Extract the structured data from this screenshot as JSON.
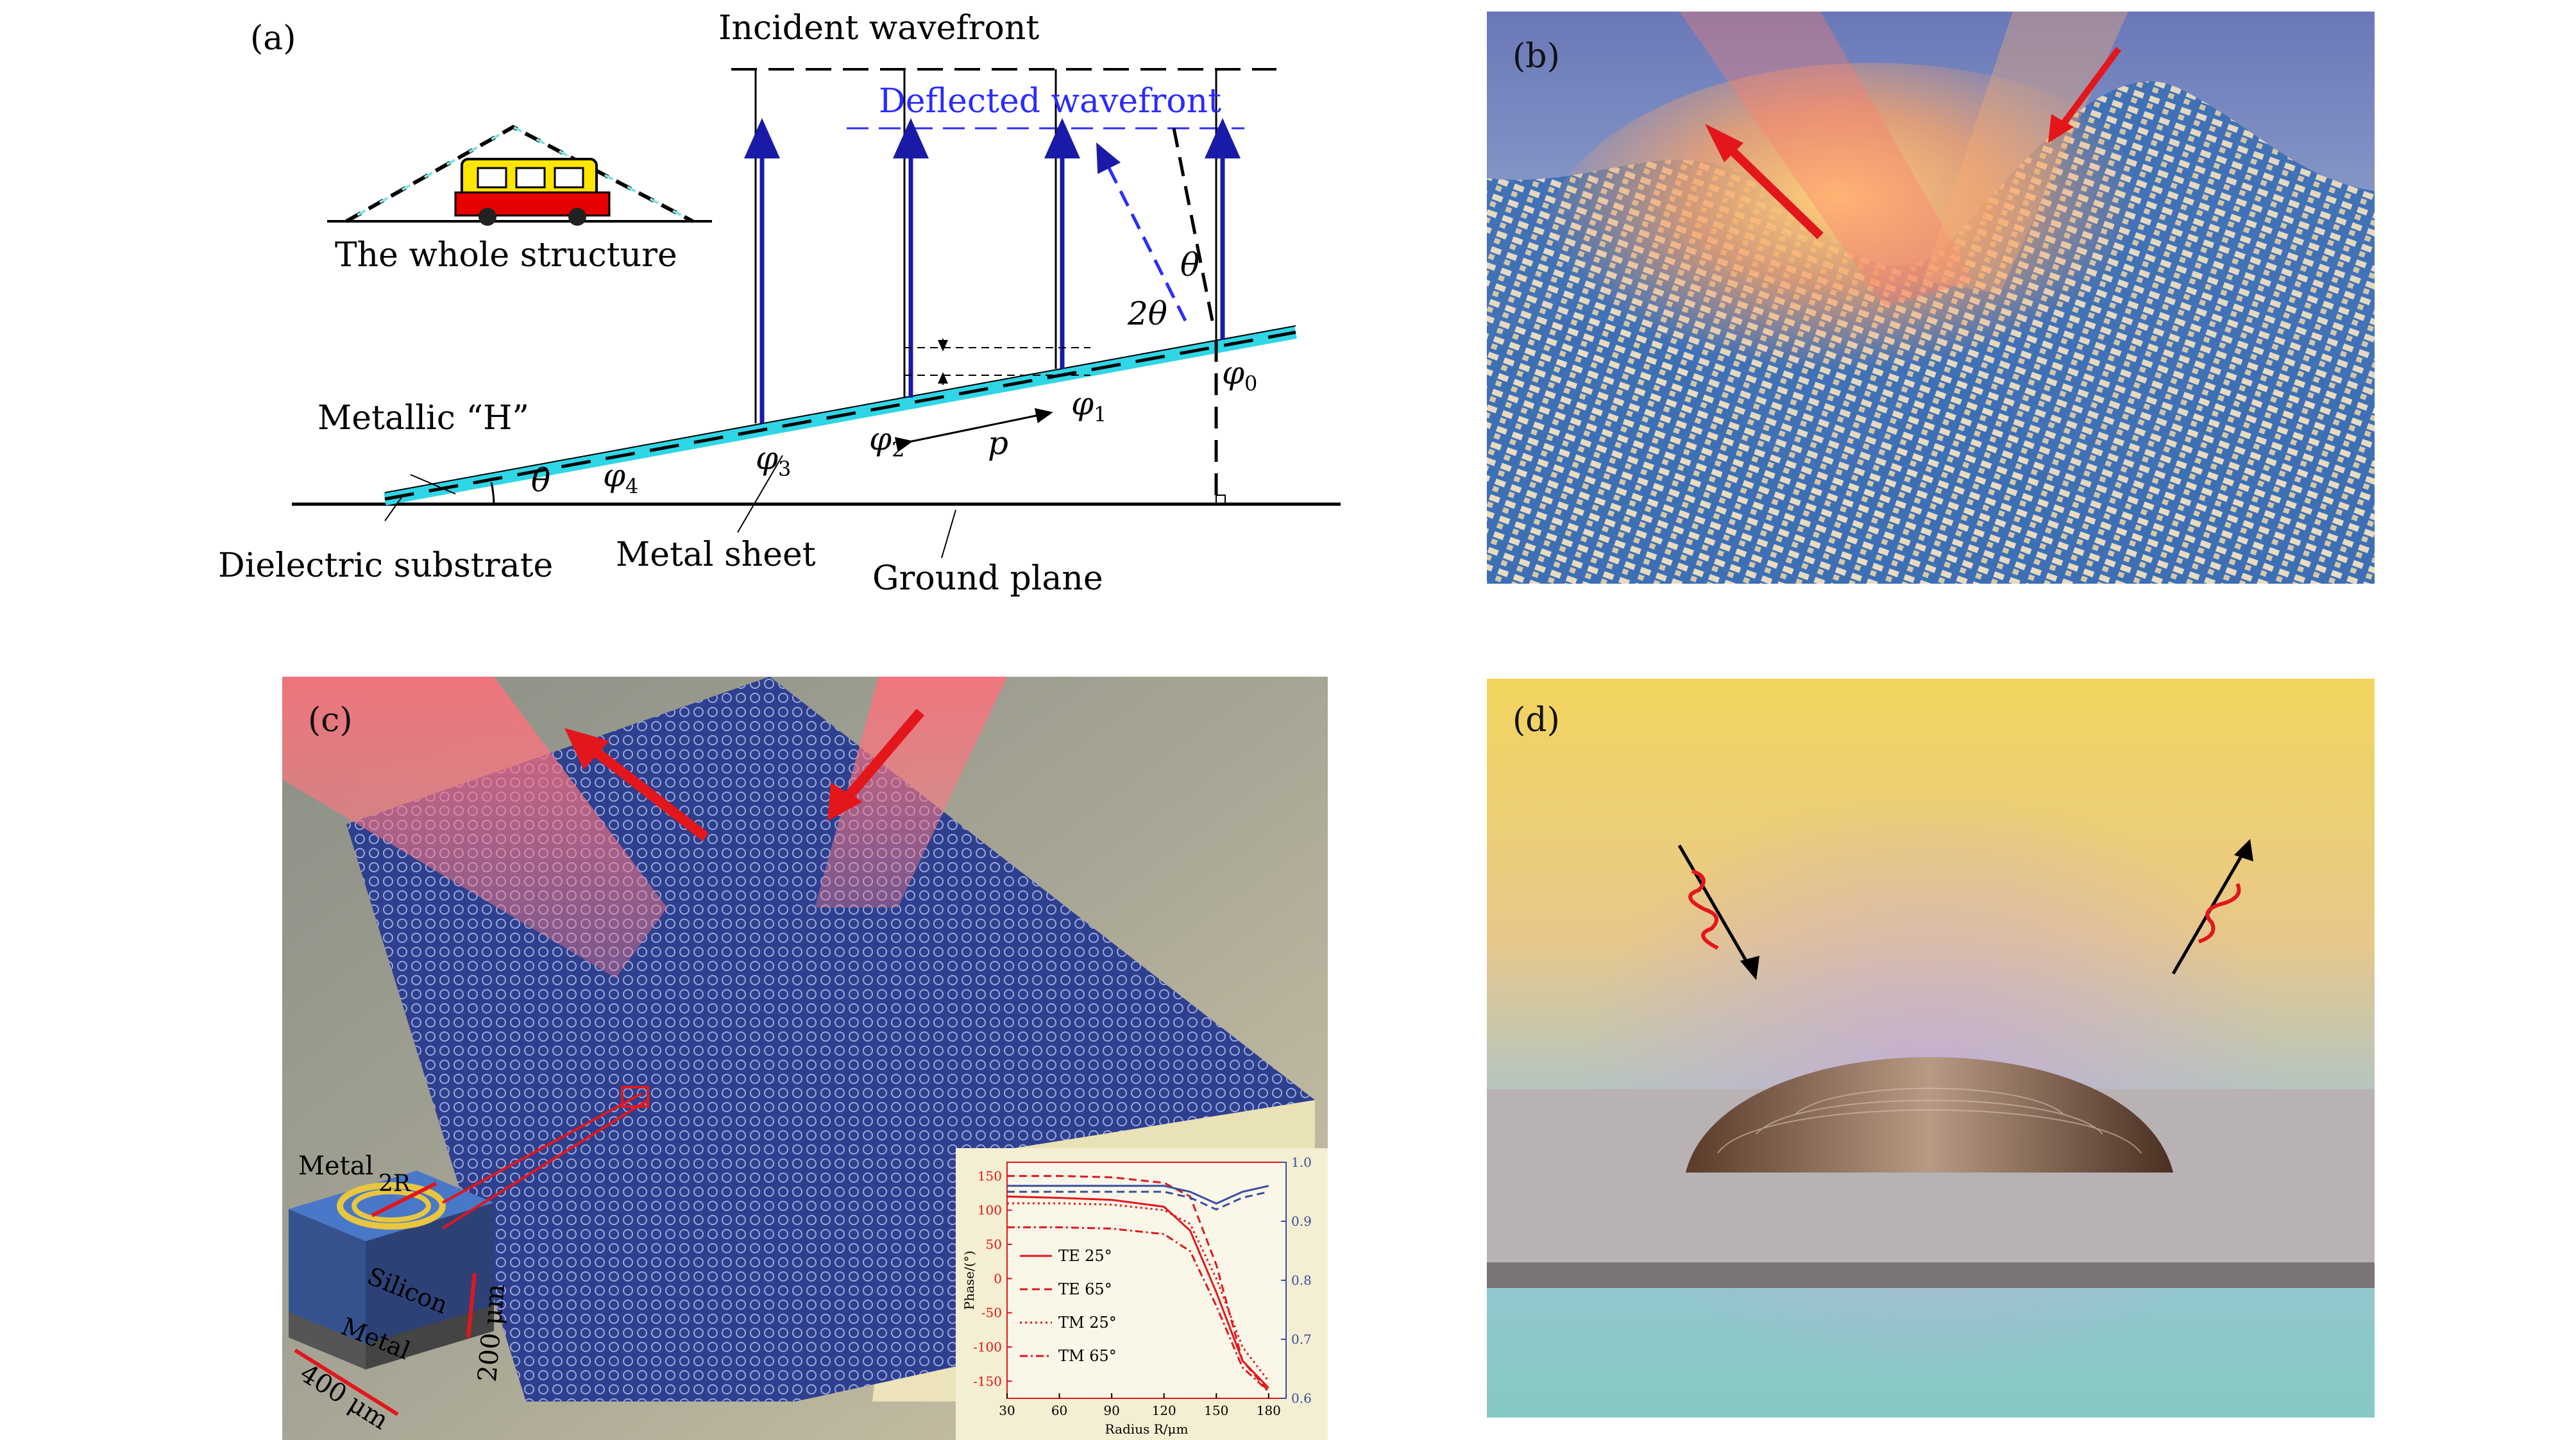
{
  "panels": {
    "a": {
      "label": "(a)",
      "incident_wavefront": "Incident wavefront",
      "deflected_wavefront": "Deflected wavefront",
      "whole_structure": "The whole structure",
      "metallic_h": "Metallic “H”",
      "dielectric_substrate": "Dielectric substrate",
      "metal_sheet": "Metal sheet",
      "ground_plane": "Ground plane",
      "theta": "θ",
      "two_theta": "2θ",
      "p": "p",
      "phi0": "φ",
      "phi0_sub": "0",
      "phi1": "φ",
      "phi1_sub": "1",
      "phi2": "φ",
      "phi2_sub": "2",
      "phi3": "φ",
      "phi3_sub": "3",
      "phi4": "φ",
      "phi4_sub": "4",
      "colors": {
        "incident": "#1a1aa8",
        "deflected": "#2b2bff",
        "sheet": "#2fd6e6"
      }
    },
    "b": {
      "label": "(b)"
    },
    "c": {
      "label": "(c)",
      "metal_top": "Metal",
      "two_r": "2R",
      "silicon": "Silicon",
      "metal_bottom": "Metal",
      "dim_400": "400 μm",
      "dim_200": "200 μm",
      "inset_chart": {
        "ylabel": "Phase/(°)",
        "xlabel": "Radius R/μm",
        "x_ticks": [
          "30",
          "60",
          "90",
          "120",
          "150",
          "180"
        ],
        "y_left_ticks": [
          "150",
          "100",
          "50",
          "0",
          "-50",
          "-100",
          "-150"
        ],
        "y_right_ticks": [
          "1.0",
          "0.9",
          "0.8",
          "0.7",
          "0.6"
        ],
        "legend": [
          "TE 25°",
          "TE 65°",
          "TM 25°",
          "TM 65°"
        ]
      }
    },
    "d": {
      "label": "(d)"
    }
  },
  "chart_data": {
    "type": "line",
    "x": [
      30,
      60,
      90,
      120,
      135,
      150,
      165,
      180
    ],
    "xlim": [
      30,
      190
    ],
    "ylim": [
      -175,
      170
    ],
    "y2lim": [
      0.6,
      1.0
    ],
    "xlabel": "Radius R/μm",
    "ylabel": "Phase/(°)",
    "series": [
      {
        "name": "TE 25°",
        "style": "solid",
        "values": [
          120,
          118,
          115,
          105,
          70,
          -20,
          -120,
          -160
        ]
      },
      {
        "name": "TE 65°",
        "style": "dashed",
        "values": [
          150,
          150,
          148,
          140,
          120,
          20,
          -120,
          -165
        ]
      },
      {
        "name": "TM 25°",
        "style": "dotted",
        "values": [
          110,
          110,
          108,
          100,
          80,
          0,
          -100,
          -150
        ]
      },
      {
        "name": "TM 65°",
        "style": "dashdot",
        "values": [
          75,
          75,
          73,
          65,
          40,
          -40,
          -130,
          -165
        ]
      }
    ],
    "series_right": [
      {
        "style": "solid",
        "values": [
          0.96,
          0.96,
          0.96,
          0.96,
          0.95,
          0.93,
          0.95,
          0.96
        ]
      },
      {
        "style": "dashed",
        "values": [
          0.95,
          0.95,
          0.95,
          0.95,
          0.94,
          0.92,
          0.94,
          0.95
        ]
      }
    ]
  }
}
